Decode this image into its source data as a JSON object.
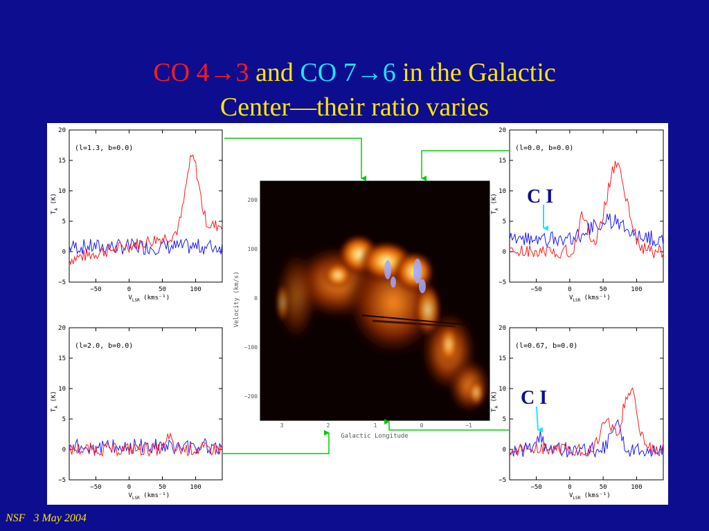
{
  "title": {
    "line1": [
      {
        "text": "CO 4",
        "color": "red"
      },
      {
        "text": "→",
        "color": "red"
      },
      {
        "text": "3",
        "color": "red"
      },
      {
        "text": " and ",
        "color": "yellow"
      },
      {
        "text": "CO 7",
        "color": "cyan"
      },
      {
        "text": "→",
        "color": "cyan"
      },
      {
        "text": "6",
        "color": "cyan"
      },
      {
        "text": " in the Galactic",
        "color": "yellow"
      }
    ],
    "line2": "Center—their ratio varies"
  },
  "footer": {
    "org": "NSF",
    "date": "3 May 2004"
  },
  "colors": {
    "background": "#0d0d8f",
    "co43": "#ff1a1a",
    "co76": "#1a1aff",
    "title": "#ffe600",
    "arrow_green": "#00cc00",
    "arrow_cyan": "#19e6ff",
    "ci_label": "#0d0d8f"
  },
  "spectra_axes": {
    "x_ticks": [
      "−50",
      "0",
      "50",
      "100"
    ],
    "y_ticks": [
      "20",
      "15",
      "10",
      "5",
      "0",
      "−5"
    ],
    "xlabel_main": "V",
    "xlabel_sub": "LSR",
    "xlabel_unit": " (kms⁻¹)",
    "ylabel_main": "T",
    "ylabel_sub": "A",
    "ylabel_unit": " (K)"
  },
  "spectra": [
    {
      "label": "(l=1.3,  b=0.0)",
      "ci": ""
    },
    {
      "label": "(l=0.0,  b=0.0)",
      "ci": "C I"
    },
    {
      "label": "(l=2.0,  b=0.0)",
      "ci": ""
    },
    {
      "label": "(l=0.67,  b=0.0)",
      "ci": "C I"
    }
  ],
  "map": {
    "x_ticks": [
      "3",
      "2",
      "1",
      "0",
      "−1"
    ],
    "y_ticks": [
      "200",
      "100",
      "0",
      "−100",
      "−200"
    ],
    "xlabel": "Galactic Longitude",
    "ylabel": "Velocity (km/s)"
  }
}
